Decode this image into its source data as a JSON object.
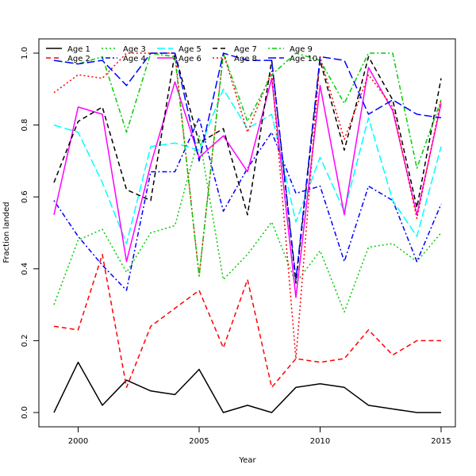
{
  "chart_data": {
    "type": "line",
    "title": "",
    "xlabel": "Year",
    "ylabel": "Fraction landed",
    "x": [
      1999,
      2000,
      2001,
      2002,
      2003,
      2004,
      2005,
      2006,
      2007,
      2008,
      2009,
      2010,
      2011,
      2012,
      2013,
      2014,
      2015
    ],
    "xlim": [
      1999,
      2015
    ],
    "ylim": [
      0,
      1
    ],
    "x_ticks": [
      2000,
      2005,
      2010,
      2015
    ],
    "y_ticks": [
      0.0,
      0.2,
      0.4,
      0.6,
      0.8,
      1.0
    ],
    "x_tick_labels": [
      "2000",
      "2005",
      "2010",
      "2015"
    ],
    "y_tick_labels": [
      "0.0",
      "0.2",
      "0.4",
      "0.6",
      "0.8",
      "1.0"
    ],
    "grid": false,
    "legend_position": "top-left",
    "series": [
      {
        "name": "Age 1",
        "color": "#000000",
        "dash": "solid",
        "values": [
          0.0,
          0.14,
          0.02,
          0.09,
          0.06,
          0.05,
          0.12,
          0.0,
          0.02,
          0.0,
          0.07,
          0.08,
          0.07,
          0.02,
          0.01,
          0.0,
          0.0
        ]
      },
      {
        "name": "Age 2",
        "color": "#ff0000",
        "dash": "dashed",
        "values": [
          0.24,
          0.23,
          0.44,
          0.07,
          0.24,
          0.29,
          0.34,
          0.18,
          0.37,
          0.07,
          0.15,
          0.14,
          0.15,
          0.23,
          0.16,
          0.2,
          0.2
        ]
      },
      {
        "name": "Age 3",
        "color": "#00cd00",
        "dash": "dotted",
        "values": [
          0.3,
          0.48,
          0.51,
          0.39,
          0.5,
          0.52,
          0.77,
          0.37,
          0.44,
          0.53,
          0.36,
          0.45,
          0.28,
          0.46,
          0.47,
          0.42,
          0.5
        ]
      },
      {
        "name": "Age 4",
        "color": "#0000ff",
        "dash": "dotdash",
        "values": [
          0.59,
          0.49,
          0.41,
          0.34,
          0.67,
          0.67,
          0.82,
          0.56,
          0.68,
          0.78,
          0.61,
          0.63,
          0.42,
          0.63,
          0.59,
          0.42,
          0.58
        ]
      },
      {
        "name": "Age 5",
        "color": "#00ffff",
        "dash": "longdash",
        "values": [
          0.8,
          0.78,
          0.64,
          0.47,
          0.74,
          0.75,
          0.73,
          0.9,
          0.79,
          0.83,
          0.53,
          0.71,
          0.56,
          0.82,
          0.59,
          0.49,
          0.74
        ]
      },
      {
        "name": "Age 6",
        "color": "#ff00ff",
        "dash": "solid",
        "values": [
          0.55,
          0.85,
          0.83,
          0.42,
          0.69,
          0.92,
          0.71,
          0.77,
          0.67,
          0.93,
          0.32,
          0.91,
          0.55,
          0.96,
          0.84,
          0.55,
          0.86
        ]
      },
      {
        "name": "Age 7",
        "color": "#000000",
        "dash": "dashed",
        "values": [
          0.64,
          0.81,
          0.85,
          0.62,
          0.59,
          1.0,
          0.75,
          0.79,
          0.55,
          0.98,
          0.36,
          0.98,
          0.73,
          0.99,
          0.87,
          0.57,
          0.93
        ]
      },
      {
        "name": "Age 8",
        "color": "#ff0000",
        "dash": "dotted",
        "values": [
          0.89,
          0.94,
          0.93,
          1.0,
          1.0,
          1.0,
          0.38,
          1.0,
          0.78,
          0.95,
          0.15,
          0.99,
          0.76,
          0.94,
          0.85,
          0.54,
          0.87
        ]
      },
      {
        "name": "Age 9",
        "color": "#00cd00",
        "dash": "dotdash",
        "values": [
          0.98,
          0.97,
          0.99,
          0.78,
          1.0,
          0.99,
          0.38,
          1.0,
          0.81,
          0.94,
          1.0,
          0.98,
          0.86,
          1.0,
          1.0,
          0.68,
          0.87
        ]
      },
      {
        "name": "Age 10",
        "color": "#0000ff",
        "dash": "longdash",
        "values": [
          0.98,
          0.97,
          0.98,
          0.91,
          1.0,
          1.0,
          0.7,
          1.0,
          0.98,
          0.98,
          0.37,
          0.99,
          0.98,
          0.83,
          0.87,
          0.83,
          0.82
        ]
      }
    ]
  }
}
